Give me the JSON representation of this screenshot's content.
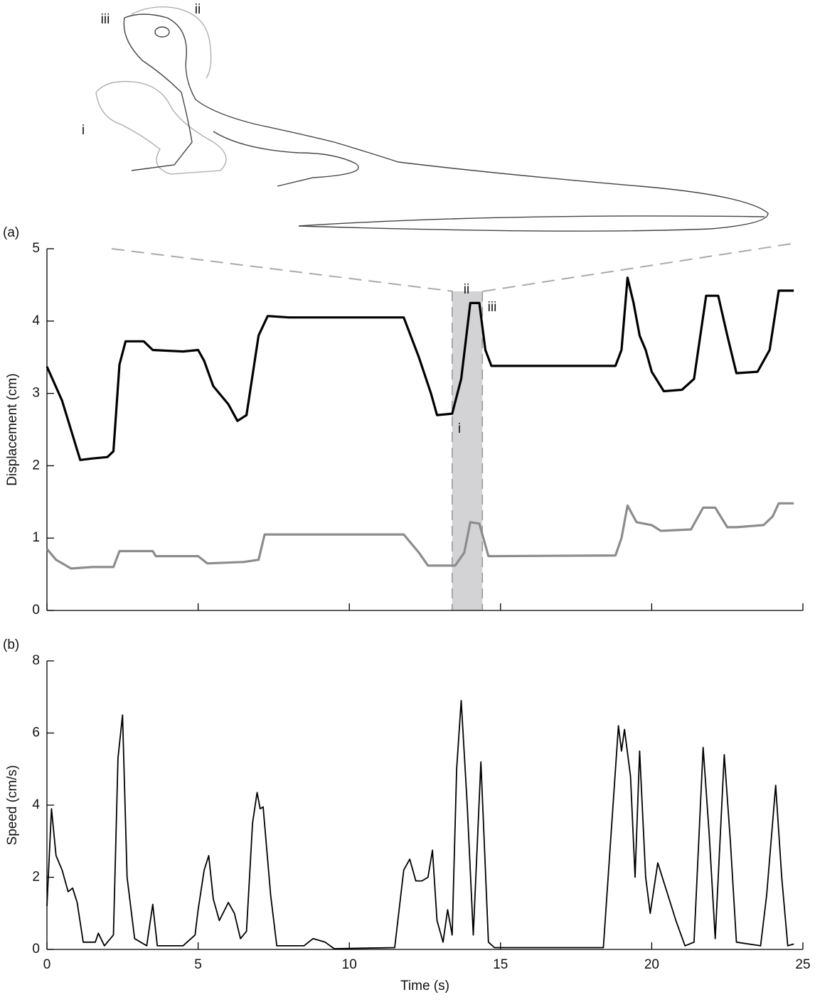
{
  "illustration": {
    "labels": [
      "iii",
      "ii",
      "i"
    ]
  },
  "chart_data": [
    {
      "type": "line",
      "panel_label": "(a)",
      "ylabel": "Displacement (cm)",
      "xlim": [
        0,
        25
      ],
      "xticks": [
        0,
        5,
        10,
        15,
        20,
        25
      ],
      "ylim": [
        0,
        5
      ],
      "yticks": [
        0,
        1,
        2,
        3,
        4,
        5
      ],
      "highlight": [
        13.4,
        14.4
      ],
      "annotations": [
        "ii",
        "iii",
        "i"
      ],
      "series": [
        {
          "color": "#000000",
          "width": 3.2,
          "x": [
            0,
            0.5,
            1.1,
            1.5,
            2.0,
            2.2,
            2.4,
            2.6,
            3.2,
            3.5,
            4.5,
            5.0,
            5.2,
            5.5,
            6.0,
            6.3,
            6.6,
            7.0,
            7.3,
            8,
            11.8,
            12.3,
            12.7,
            12.9,
            13.4,
            13.7,
            14.0,
            14.3,
            14.5,
            14.7,
            18.8,
            19.0,
            19.2,
            19.4,
            19.6,
            19.8,
            20.0,
            20.4,
            21.0,
            21.4,
            21.8,
            22.2,
            22.5,
            22.8,
            23.5,
            23.9,
            24.2,
            24.7
          ],
          "values": [
            3.37,
            2.9,
            2.08,
            2.1,
            2.12,
            2.2,
            3.4,
            3.72,
            3.72,
            3.6,
            3.58,
            3.6,
            3.45,
            3.1,
            2.85,
            2.62,
            2.7,
            3.8,
            4.07,
            4.05,
            4.05,
            3.5,
            3.0,
            2.7,
            2.72,
            3.2,
            4.25,
            4.25,
            3.6,
            3.38,
            3.38,
            3.6,
            4.6,
            4.25,
            3.8,
            3.6,
            3.3,
            3.03,
            3.05,
            3.2,
            4.35,
            4.35,
            3.8,
            3.28,
            3.3,
            3.6,
            4.42,
            4.42
          ]
        },
        {
          "color": "#8c8c8c",
          "width": 3.2,
          "x": [
            0,
            0.3,
            0.8,
            1.5,
            2.2,
            2.4,
            3.5,
            3.6,
            5.0,
            5.3,
            6.5,
            7.0,
            7.2,
            11.8,
            12.3,
            12.6,
            13.5,
            13.8,
            14.0,
            14.3,
            14.6,
            18.8,
            19.0,
            19.2,
            19.5,
            20.0,
            20.3,
            21.3,
            21.7,
            22.1,
            22.5,
            22.8,
            23.7,
            24.0,
            24.2,
            24.7
          ],
          "values": [
            0.85,
            0.7,
            0.58,
            0.6,
            0.6,
            0.82,
            0.82,
            0.75,
            0.75,
            0.65,
            0.67,
            0.7,
            1.05,
            1.05,
            0.8,
            0.62,
            0.62,
            0.8,
            1.22,
            1.2,
            0.75,
            0.76,
            1.0,
            1.45,
            1.22,
            1.18,
            1.1,
            1.12,
            1.42,
            1.42,
            1.15,
            1.15,
            1.18,
            1.3,
            1.48,
            1.48
          ]
        }
      ]
    },
    {
      "type": "line",
      "panel_label": "(b)",
      "ylabel": "Speed (cm/s)",
      "xlabel": "Time (s)",
      "xlim": [
        0,
        25
      ],
      "xticks": [
        0,
        5,
        10,
        15,
        20,
        25
      ],
      "ylim": [
        0,
        8
      ],
      "yticks": [
        0,
        2,
        4,
        6,
        8
      ],
      "series": [
        {
          "color": "#000000",
          "width": 1.8,
          "x": [
            0,
            0.15,
            0.3,
            0.5,
            0.7,
            0.85,
            1.0,
            1.2,
            1.6,
            1.7,
            1.9,
            2.2,
            2.35,
            2.5,
            2.65,
            2.9,
            3.3,
            3.5,
            3.65,
            4.5,
            4.9,
            5.0,
            5.2,
            5.35,
            5.5,
            5.7,
            6.0,
            6.2,
            6.4,
            6.6,
            6.8,
            6.95,
            7.05,
            7.15,
            7.4,
            7.6,
            8.5,
            8.8,
            9.2,
            9.5,
            11.5,
            11.8,
            12.0,
            12.2,
            12.4,
            12.6,
            12.75,
            12.9,
            13.1,
            13.25,
            13.4,
            13.55,
            13.7,
            13.9,
            14.1,
            14.35,
            14.6,
            14.8,
            18.4,
            18.9,
            19.0,
            19.1,
            19.3,
            19.45,
            19.6,
            19.8,
            19.95,
            20.2,
            20.5,
            20.8,
            21.1,
            21.4,
            21.7,
            21.9,
            22.1,
            22.4,
            22.6,
            22.8,
            23.6,
            23.8,
            24.1,
            24.3,
            24.5,
            24.7
          ],
          "values": [
            1.2,
            3.9,
            2.6,
            2.2,
            1.6,
            1.7,
            1.3,
            0.2,
            0.2,
            0.45,
            0.1,
            0.4,
            5.3,
            6.5,
            2.0,
            0.3,
            0.1,
            1.25,
            0.1,
            0.1,
            0.4,
            1.1,
            2.2,
            2.6,
            1.4,
            0.8,
            1.3,
            1.0,
            0.3,
            0.5,
            3.5,
            4.35,
            3.9,
            3.95,
            1.5,
            0.1,
            0.1,
            0.3,
            0.2,
            0.02,
            0.05,
            2.2,
            2.5,
            1.9,
            1.9,
            2.0,
            2.75,
            0.8,
            0.2,
            1.1,
            0.4,
            5.0,
            6.9,
            4.0,
            0.4,
            5.2,
            0.2,
            0.05,
            0.05,
            6.2,
            5.5,
            6.1,
            4.8,
            2.0,
            5.5,
            2.0,
            1.0,
            2.4,
            1.6,
            0.8,
            0.1,
            0.2,
            5.6,
            3.2,
            0.3,
            5.4,
            3.0,
            0.2,
            0.1,
            1.5,
            4.55,
            2.0,
            0.1,
            0.15
          ]
        }
      ]
    }
  ]
}
